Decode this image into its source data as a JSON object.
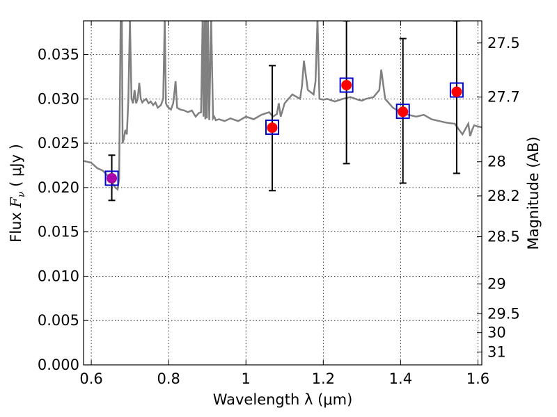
{
  "chart_data": {
    "type": "line",
    "xlabel": "Wavelength  λ (μm)",
    "ylabel_parts": [
      "Flux  ",
      "F",
      "ν",
      "  ( μJy )"
    ],
    "y2label": "Magnitude (AB)",
    "xlim": [
      0.58,
      1.61
    ],
    "ylim": [
      0.0,
      0.0388
    ],
    "x_ticks": [
      0.6,
      0.8,
      1.0,
      1.2,
      1.4,
      1.6
    ],
    "x_tick_labels": [
      "0.6",
      "0.8",
      "1",
      "1.2",
      "1.4",
      "1.6"
    ],
    "y_ticks": [
      0.0,
      0.005,
      0.01,
      0.015,
      0.02,
      0.025,
      0.03,
      0.035
    ],
    "y_tick_labels": [
      "0.000",
      "0.005",
      "0.010",
      "0.015",
      "0.020",
      "0.025",
      "0.030",
      "0.035"
    ],
    "mag_ticks": [
      27.5,
      27.7,
      28,
      28.2,
      28.5,
      29,
      29.5,
      30,
      31
    ],
    "mag_tick_labels": [
      "27.5",
      "27.7",
      "28",
      "28.2",
      "28.5",
      "29",
      "29.5",
      "30",
      "31"
    ],
    "mag_zeropoint_uJy": 3631000000.0,
    "grid": true,
    "colors": {
      "spectrum": "#808080",
      "photometry_marker": "#ff0000",
      "model_box": "#0000cc",
      "errorbar": "#000000",
      "first_point_fill": "#aa00aa"
    },
    "spectrum": {
      "x": [
        0.58,
        0.6,
        0.615,
        0.63,
        0.645,
        0.655,
        0.662,
        0.668,
        0.672,
        0.676,
        0.679,
        0.681,
        0.684,
        0.688,
        0.692,
        0.696,
        0.7,
        0.704,
        0.708,
        0.712,
        0.716,
        0.72,
        0.724,
        0.728,
        0.732,
        0.736,
        0.742,
        0.748,
        0.754,
        0.76,
        0.766,
        0.772,
        0.78,
        0.786,
        0.79,
        0.793,
        0.796,
        0.8,
        0.806,
        0.812,
        0.818,
        0.822,
        0.83,
        0.84,
        0.85,
        0.86,
        0.87,
        0.878,
        0.884,
        0.888,
        0.89,
        0.893,
        0.895,
        0.897,
        0.899,
        0.902,
        0.905,
        0.91,
        0.915,
        0.918,
        0.922,
        0.93,
        0.945,
        0.96,
        0.98,
        1.0,
        1.02,
        1.04,
        1.06,
        1.07,
        1.08,
        1.085,
        1.09,
        1.1,
        1.12,
        1.14,
        1.145,
        1.15,
        1.16,
        1.175,
        1.18,
        1.185,
        1.19,
        1.2,
        1.21,
        1.23,
        1.25,
        1.27,
        1.29,
        1.3,
        1.31,
        1.33,
        1.345,
        1.35,
        1.36,
        1.38,
        1.4,
        1.42,
        1.44,
        1.46,
        1.48,
        1.5,
        1.52,
        1.54,
        1.56,
        1.57,
        1.575,
        1.58,
        1.585,
        1.59,
        1.6,
        1.61
      ],
      "y": [
        0.023,
        0.0228,
        0.0222,
        0.0219,
        0.0212,
        0.0205,
        0.02,
        0.0198,
        0.021,
        0.039,
        0.039,
        0.025,
        0.0255,
        0.0265,
        0.026,
        0.03,
        0.039,
        0.03,
        0.0295,
        0.031,
        0.0295,
        0.03,
        0.0318,
        0.03,
        0.0296,
        0.0298,
        0.03,
        0.0295,
        0.0297,
        0.0293,
        0.0296,
        0.029,
        0.0293,
        0.03,
        0.039,
        0.0295,
        0.0292,
        0.029,
        0.0288,
        0.0295,
        0.032,
        0.029,
        0.0288,
        0.0287,
        0.0285,
        0.0287,
        0.028,
        0.0284,
        0.0285,
        0.039,
        0.028,
        0.039,
        0.0277,
        0.039,
        0.0278,
        0.039,
        0.0276,
        0.039,
        0.0278,
        0.028,
        0.0276,
        0.0277,
        0.0275,
        0.0278,
        0.0275,
        0.028,
        0.0277,
        0.0282,
        0.0285,
        0.028,
        0.0283,
        0.0295,
        0.028,
        0.0295,
        0.0305,
        0.03,
        0.0315,
        0.0343,
        0.031,
        0.0305,
        0.032,
        0.039,
        0.03,
        0.0299,
        0.03,
        0.0297,
        0.03,
        0.0302,
        0.0299,
        0.0298,
        0.03,
        0.0302,
        0.031,
        0.0333,
        0.03,
        0.029,
        0.0285,
        0.0282,
        0.028,
        0.0282,
        0.0277,
        0.0275,
        0.0273,
        0.0272,
        0.026,
        0.0268,
        0.0272,
        0.0258,
        0.0265,
        0.027,
        0.0269,
        0.0268
      ]
    },
    "photometry": [
      {
        "x": 0.653,
        "y": 0.02105,
        "yerr_low": 0.01855,
        "yerr_high": 0.02365,
        "model": 0.02105
      },
      {
        "x": 1.068,
        "y": 0.02675,
        "yerr_low": 0.01965,
        "yerr_high": 0.03375,
        "model": 0.0268
      },
      {
        "x": 1.26,
        "y": 0.03155,
        "yerr_low": 0.0227,
        "yerr_high": 0.0388,
        "model": 0.03155
      },
      {
        "x": 1.406,
        "y": 0.02855,
        "yerr_low": 0.0205,
        "yerr_high": 0.0368,
        "model": 0.0286
      },
      {
        "x": 1.545,
        "y": 0.0308,
        "yerr_low": 0.0216,
        "yerr_high": 0.0388,
        "model": 0.031
      }
    ]
  }
}
